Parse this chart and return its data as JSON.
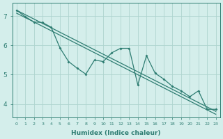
{
  "xlabel": "Humidex (Indice chaleur)",
  "bg_color": "#d4eeeb",
  "grid_color": "#aed4cf",
  "line_color": "#2e7d72",
  "xlim": [
    -0.5,
    23.5
  ],
  "ylim": [
    3.55,
    7.45
  ],
  "yticks": [
    4,
    5,
    6,
    7
  ],
  "xticks": [
    0,
    1,
    2,
    3,
    4,
    5,
    6,
    7,
    8,
    9,
    10,
    11,
    12,
    13,
    14,
    15,
    16,
    17,
    18,
    19,
    20,
    21,
    22,
    23
  ],
  "jagged_x": [
    0,
    1,
    2,
    3,
    4,
    5,
    6,
    7,
    8,
    9,
    10,
    11,
    12,
    13,
    14,
    15,
    16,
    17,
    18,
    19,
    20,
    21,
    22,
    23
  ],
  "jagged_y": [
    7.2,
    6.98,
    6.8,
    6.78,
    6.62,
    5.92,
    5.45,
    5.22,
    5.02,
    5.5,
    5.45,
    5.75,
    5.9,
    5.9,
    4.65,
    5.65,
    5.05,
    4.85,
    4.6,
    4.45,
    4.25,
    4.45,
    3.82,
    3.82
  ],
  "line2_x": [
    0,
    23
  ],
  "line2_y": [
    7.2,
    3.75
  ],
  "line3_x": [
    0,
    23
  ],
  "line3_y": [
    7.1,
    3.65
  ]
}
